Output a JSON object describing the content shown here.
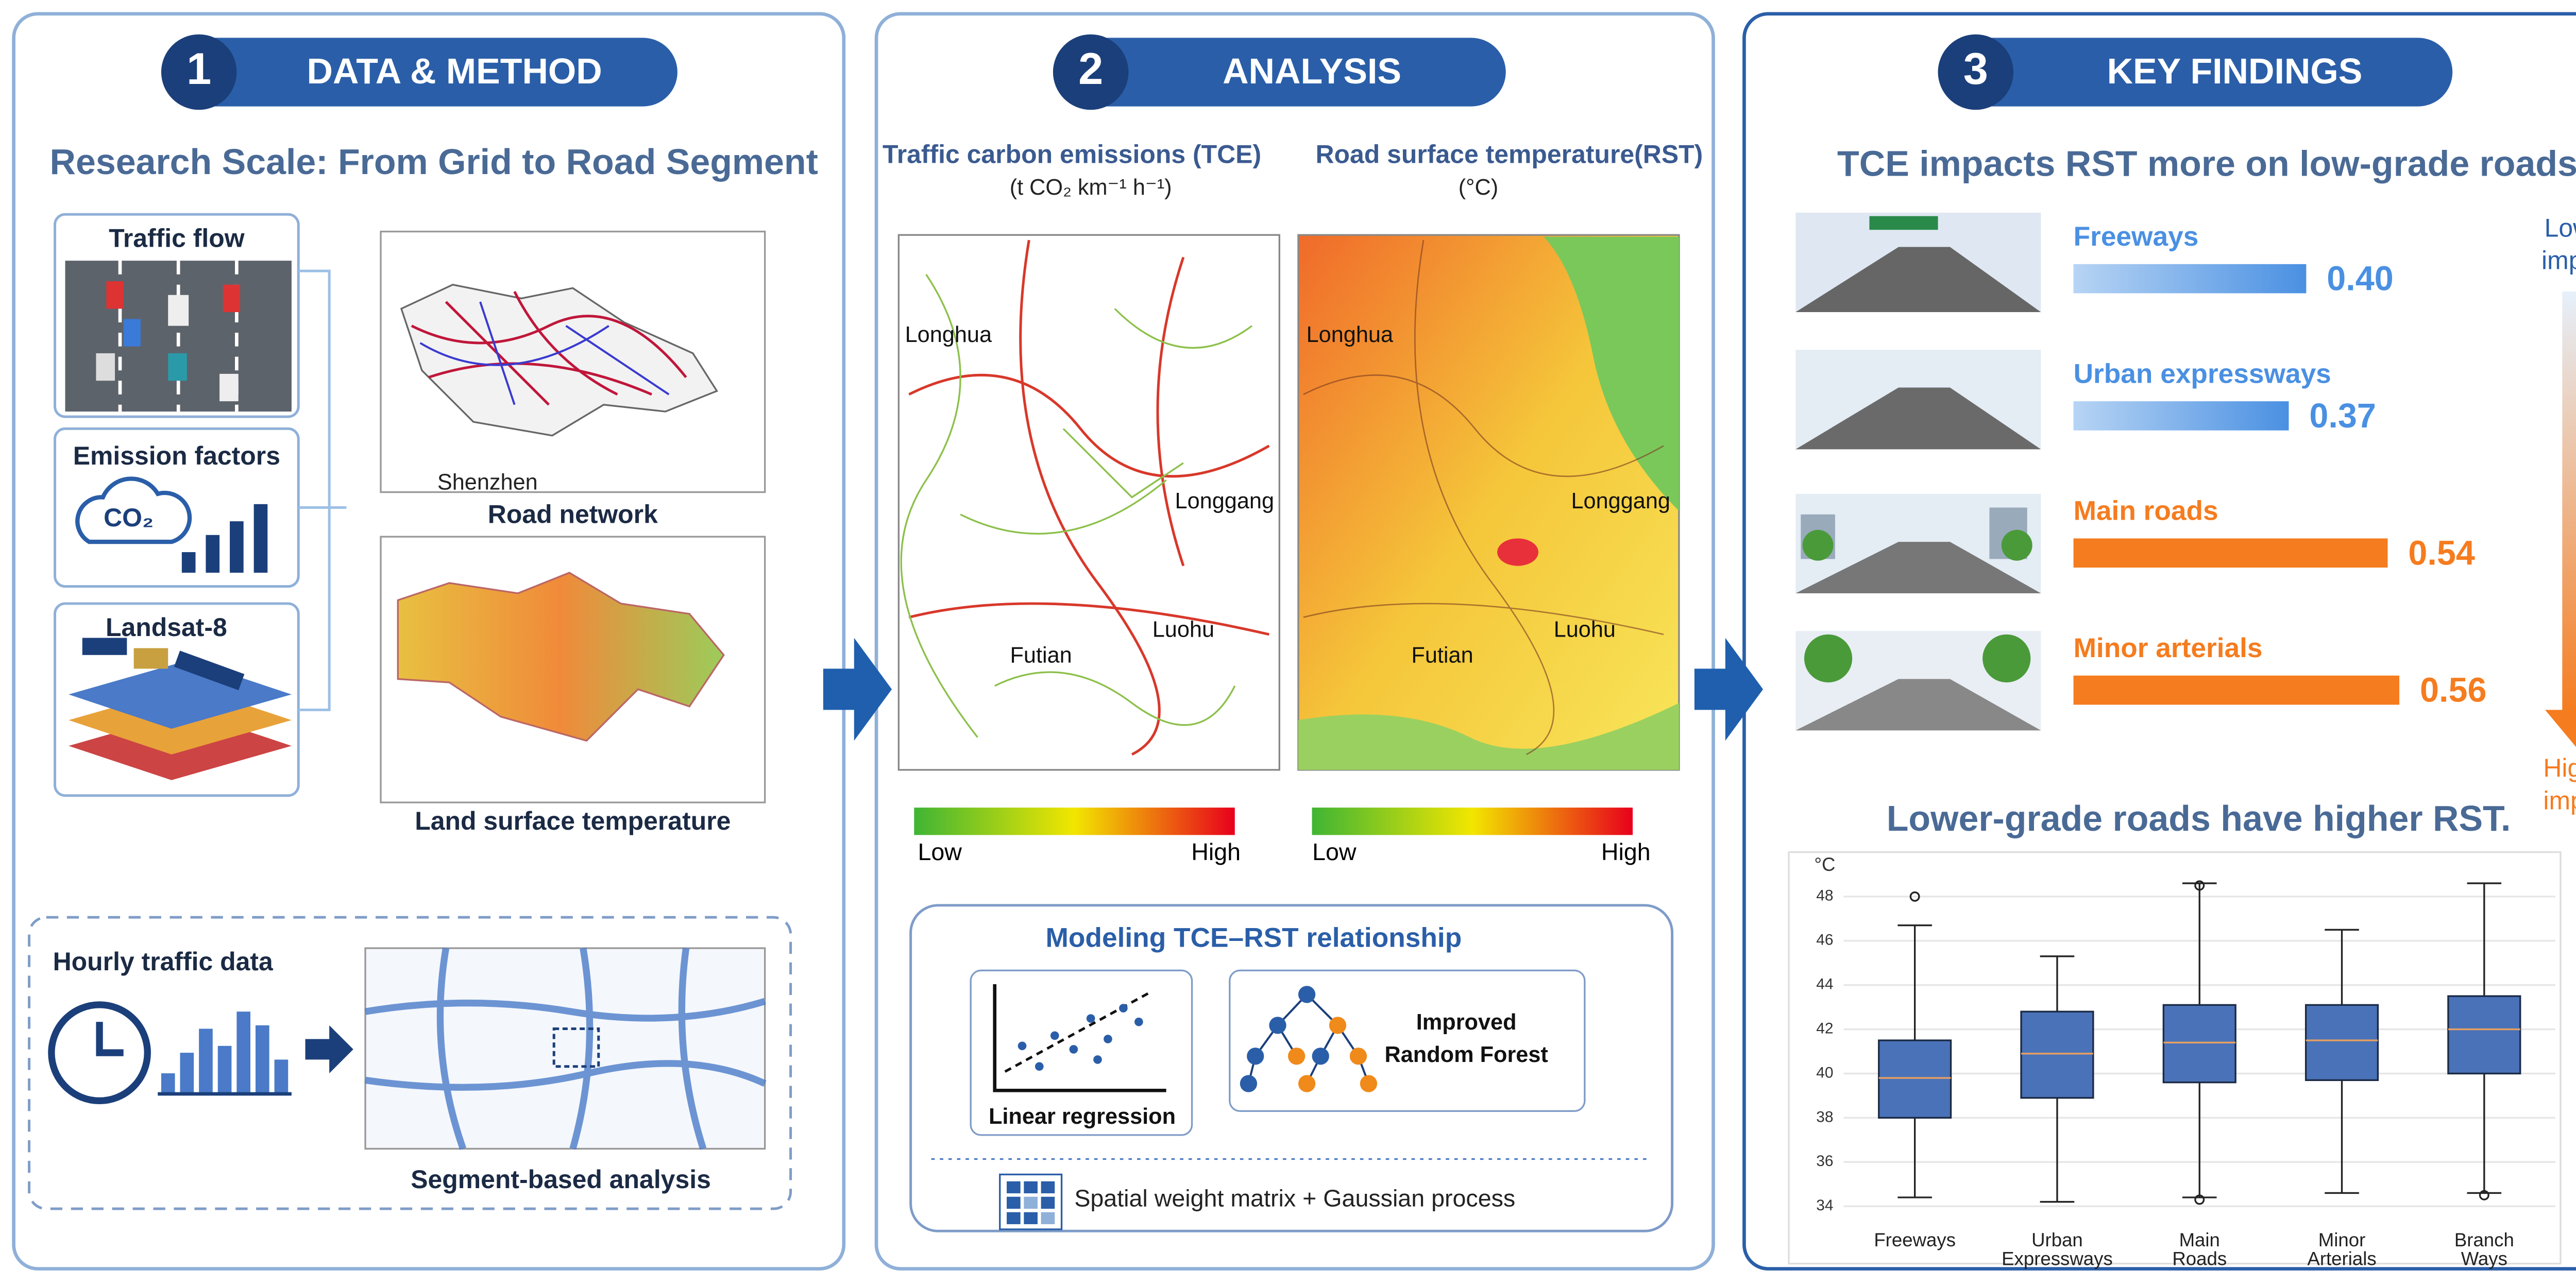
{
  "panels": [
    {
      "number": "1",
      "title": "DATA & METHOD"
    },
    {
      "number": "2",
      "title": "ANALYSIS"
    },
    {
      "number": "3",
      "title": "KEY FINDINGS"
    }
  ],
  "data_method": {
    "heading": "Research Scale: From Grid to Road Segment",
    "inputs": [
      "Traffic flow",
      "Emission factors",
      "Landsat-8"
    ],
    "co2": "CO₂",
    "road_network": "Road network",
    "city": "Shenzhen",
    "lst": "Land surface temperature",
    "hourly": "Hourly traffic data",
    "segment": "Segment-based analysis"
  },
  "analysis": {
    "tce_title": "Traffic carbon emissions (TCE)",
    "tce_unit": "(t CO₂ km⁻¹ h⁻¹)",
    "rst_title": "Road surface temperature(RST)",
    "rst_unit": "(°C)",
    "districts": [
      "Longhua",
      "Longgang",
      "Futian",
      "Luohu"
    ],
    "low": "Low",
    "high": "High",
    "model_title": "Modeling TCE–RST relationship",
    "linear": "Linear regression",
    "forest": [
      "Improved",
      "Random Forest"
    ],
    "spatial": "Spatial weight matrix + Gaussian process"
  },
  "findings": {
    "title": "TCE impacts RST more on low-grade roads.",
    "roads": [
      {
        "name": "Freeways",
        "value": 0.4,
        "value_label": "0.40",
        "color": "#4a90e2"
      },
      {
        "name": "Urban expressways",
        "value": 0.37,
        "color": "#4a90e2"
      },
      {
        "name": "Main roads",
        "value": 0.54,
        "color": "#f57c1f"
      },
      {
        "name": "Minor arterials",
        "value": 0.56,
        "color": "#f57c1f"
      }
    ],
    "lower": [
      "Lower",
      "impact"
    ],
    "higher": [
      "Higher",
      "impact"
    ],
    "box_title": "Lower-grade roads have higher RST.",
    "boxplot": {
      "unit": "°C",
      "ylim": [
        33.5,
        49
      ],
      "yticks": [
        34,
        36,
        38,
        40,
        42,
        44,
        46,
        48
      ],
      "categories": [
        [
          "Freeways"
        ],
        [
          "Urban",
          "Expressways"
        ],
        [
          "Main",
          "Roads"
        ],
        [
          "Minor",
          "Arterials"
        ],
        [
          "Branch",
          "Ways"
        ]
      ],
      "whisker_high": [
        46.7,
        45.3,
        48.6,
        46.5,
        48.6
      ],
      "q3": [
        41.5,
        42.8,
        43.1,
        43.1,
        43.5
      ],
      "median": [
        39.8,
        40.9,
        41.4,
        41.5,
        42.0
      ],
      "q1": [
        38.0,
        38.9,
        39.6,
        39.7,
        40.0
      ],
      "whisker_low": [
        34.4,
        34.2,
        34.4,
        34.6,
        34.6
      ],
      "outliers": [
        [
          48.0
        ],
        [],
        [
          48.5,
          34.3
        ],
        [],
        [
          34.5
        ]
      ]
    }
  }
}
